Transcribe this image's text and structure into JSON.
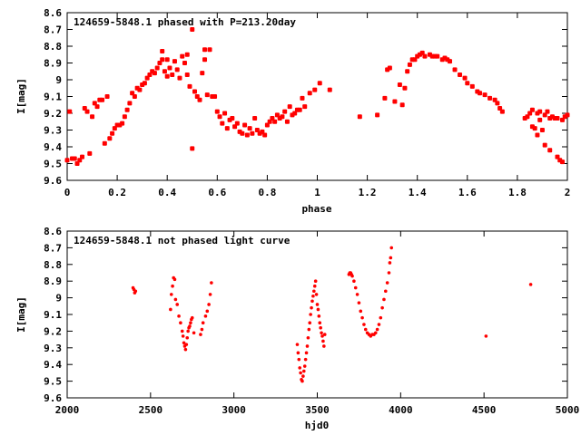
{
  "colors": {
    "points": "#ff0000",
    "axes": "#000000",
    "background": "#ffffff"
  },
  "chart_data": [
    {
      "type": "scatter",
      "title": "124659-5848.1 phased with P=213.20day",
      "xlabel": "phase",
      "ylabel": "I[mag]",
      "xlim": [
        0,
        2
      ],
      "ylim": [
        9.6,
        8.6
      ],
      "y_inverted": true,
      "grid": false,
      "xticks": [
        "0",
        "0.2",
        "0.4",
        "0.6",
        "0.8",
        "1",
        "1.2",
        "1.4",
        "1.6",
        "1.8",
        "2"
      ],
      "xtick_values": [
        0,
        0.2,
        0.4,
        0.6,
        0.8,
        1,
        1.2,
        1.4,
        1.6,
        1.8,
        2
      ],
      "yticks": [
        "8.6",
        "8.7",
        "8.8",
        "8.9",
        "9",
        "9.1",
        "9.2",
        "9.3",
        "9.4",
        "9.5",
        "9.6"
      ],
      "ytick_values": [
        8.6,
        8.7,
        8.8,
        8.9,
        9.0,
        9.1,
        9.2,
        9.3,
        9.4,
        9.5,
        9.6
      ],
      "marker": "large",
      "points": [
        [
          0.0,
          9.48
        ],
        [
          0.01,
          9.19
        ],
        [
          0.02,
          9.47
        ],
        [
          0.03,
          9.47
        ],
        [
          0.04,
          9.5
        ],
        [
          0.05,
          9.48
        ],
        [
          0.06,
          9.46
        ],
        [
          0.07,
          9.17
        ],
        [
          0.08,
          9.19
        ],
        [
          0.09,
          9.44
        ],
        [
          0.1,
          9.22
        ],
        [
          0.11,
          9.14
        ],
        [
          0.12,
          9.16
        ],
        [
          0.13,
          9.12
        ],
        [
          0.14,
          9.12
        ],
        [
          0.15,
          9.38
        ],
        [
          0.16,
          9.1
        ],
        [
          0.17,
          9.35
        ],
        [
          0.18,
          9.32
        ],
        [
          0.19,
          9.29
        ],
        [
          0.2,
          9.27
        ],
        [
          0.21,
          9.27
        ],
        [
          0.22,
          9.26
        ],
        [
          0.23,
          9.22
        ],
        [
          0.24,
          9.18
        ],
        [
          0.25,
          9.14
        ],
        [
          0.26,
          9.08
        ],
        [
          0.27,
          9.1
        ],
        [
          0.28,
          9.05
        ],
        [
          0.29,
          9.06
        ],
        [
          0.3,
          9.03
        ],
        [
          0.31,
          9.02
        ],
        [
          0.32,
          8.99
        ],
        [
          0.33,
          8.97
        ],
        [
          0.34,
          8.95
        ],
        [
          0.35,
          8.96
        ],
        [
          0.36,
          8.93
        ],
        [
          0.37,
          8.9
        ],
        [
          0.38,
          8.83
        ],
        [
          0.38,
          8.88
        ],
        [
          0.39,
          8.95
        ],
        [
          0.4,
          8.98
        ],
        [
          0.4,
          8.88
        ],
        [
          0.41,
          8.93
        ],
        [
          0.42,
          8.97
        ],
        [
          0.43,
          8.89
        ],
        [
          0.44,
          8.94
        ],
        [
          0.45,
          8.99
        ],
        [
          0.46,
          8.86
        ],
        [
          0.47,
          8.9
        ],
        [
          0.48,
          8.97
        ],
        [
          0.48,
          8.85
        ],
        [
          0.49,
          9.04
        ],
        [
          0.5,
          9.41
        ],
        [
          0.5,
          8.7
        ],
        [
          0.51,
          9.07
        ],
        [
          0.52,
          9.1
        ],
        [
          0.53,
          9.12
        ],
        [
          0.54,
          8.96
        ],
        [
          0.55,
          8.88
        ],
        [
          0.55,
          8.82
        ],
        [
          0.56,
          9.09
        ],
        [
          0.57,
          8.82
        ],
        [
          0.58,
          9.1
        ],
        [
          0.59,
          9.1
        ],
        [
          0.6,
          9.19
        ],
        [
          0.61,
          9.22
        ],
        [
          0.62,
          9.26
        ],
        [
          0.63,
          9.2
        ],
        [
          0.64,
          9.29
        ],
        [
          0.65,
          9.24
        ],
        [
          0.66,
          9.23
        ],
        [
          0.67,
          9.28
        ],
        [
          0.68,
          9.26
        ],
        [
          0.69,
          9.31
        ],
        [
          0.7,
          9.32
        ],
        [
          0.71,
          9.27
        ],
        [
          0.72,
          9.33
        ],
        [
          0.73,
          9.29
        ],
        [
          0.74,
          9.32
        ],
        [
          0.75,
          9.23
        ],
        [
          0.76,
          9.3
        ],
        [
          0.77,
          9.32
        ],
        [
          0.78,
          9.31
        ],
        [
          0.79,
          9.33
        ],
        [
          0.8,
          9.27
        ],
        [
          0.81,
          9.25
        ],
        [
          0.82,
          9.23
        ],
        [
          0.83,
          9.25
        ],
        [
          0.84,
          9.21
        ],
        [
          0.85,
          9.23
        ],
        [
          0.86,
          9.22
        ],
        [
          0.87,
          9.19
        ],
        [
          0.88,
          9.25
        ],
        [
          0.89,
          9.16
        ],
        [
          0.9,
          9.21
        ],
        [
          0.91,
          9.2
        ],
        [
          0.92,
          9.18
        ],
        [
          0.93,
          9.18
        ],
        [
          0.94,
          9.11
        ],
        [
          0.95,
          9.16
        ],
        [
          0.97,
          9.08
        ],
        [
          0.99,
          9.06
        ],
        [
          1.01,
          9.02
        ],
        [
          1.05,
          9.06
        ],
        [
          1.17,
          9.22
        ],
        [
          1.24,
          9.21
        ],
        [
          1.27,
          9.11
        ],
        [
          1.28,
          8.94
        ],
        [
          1.29,
          8.93
        ],
        [
          1.31,
          9.13
        ],
        [
          1.33,
          9.03
        ],
        [
          1.34,
          9.15
        ],
        [
          1.35,
          9.05
        ],
        [
          1.36,
          8.95
        ],
        [
          1.37,
          8.91
        ],
        [
          1.38,
          8.88
        ],
        [
          1.39,
          8.88
        ],
        [
          1.4,
          8.86
        ],
        [
          1.41,
          8.85
        ],
        [
          1.42,
          8.84
        ],
        [
          1.43,
          8.86
        ],
        [
          1.45,
          8.85
        ],
        [
          1.46,
          8.86
        ],
        [
          1.47,
          8.86
        ],
        [
          1.48,
          8.86
        ],
        [
          1.5,
          8.88
        ],
        [
          1.51,
          8.87
        ],
        [
          1.52,
          8.88
        ],
        [
          1.53,
          8.89
        ],
        [
          1.55,
          8.94
        ],
        [
          1.57,
          8.97
        ],
        [
          1.59,
          8.99
        ],
        [
          1.6,
          9.02
        ],
        [
          1.62,
          9.04
        ],
        [
          1.64,
          9.07
        ],
        [
          1.65,
          9.08
        ],
        [
          1.67,
          9.09
        ],
        [
          1.69,
          9.11
        ],
        [
          1.71,
          9.12
        ],
        [
          1.72,
          9.14
        ],
        [
          1.73,
          9.17
        ],
        [
          1.74,
          9.19
        ],
        [
          1.83,
          9.23
        ],
        [
          1.84,
          9.22
        ],
        [
          1.85,
          9.2
        ],
        [
          1.86,
          9.28
        ],
        [
          1.86,
          9.18
        ],
        [
          1.87,
          9.29
        ],
        [
          1.88,
          9.2
        ],
        [
          1.88,
          9.33
        ],
        [
          1.89,
          9.24
        ],
        [
          1.89,
          9.19
        ],
        [
          1.9,
          9.3
        ],
        [
          1.91,
          9.39
        ],
        [
          1.91,
          9.21
        ],
        [
          1.92,
          9.19
        ],
        [
          1.93,
          9.42
        ],
        [
          1.93,
          9.23
        ],
        [
          1.94,
          9.22
        ],
        [
          1.95,
          9.23
        ],
        [
          1.96,
          9.46
        ],
        [
          1.96,
          9.23
        ],
        [
          1.97,
          9.48
        ],
        [
          1.98,
          9.24
        ],
        [
          1.98,
          9.49
        ],
        [
          1.99,
          9.22
        ],
        [
          2.0,
          9.21
        ]
      ]
    },
    {
      "type": "scatter",
      "title": "124659-5848.1 not phased light curve",
      "xlabel": "hjd0",
      "ylabel": "I[mag]",
      "xlim": [
        2000,
        5000
      ],
      "ylim": [
        9.6,
        8.6
      ],
      "y_inverted": true,
      "grid": false,
      "xticks": [
        "2000",
        "2500",
        "3000",
        "3500",
        "4000",
        "4500",
        "5000"
      ],
      "xtick_values": [
        2000,
        2500,
        3000,
        3500,
        4000,
        4500,
        5000
      ],
      "yticks": [
        "8.6",
        "8.7",
        "8.8",
        "8.9",
        "9",
        "9.1",
        "9.2",
        "9.3",
        "9.4",
        "9.5",
        "9.6"
      ],
      "ytick_values": [
        8.6,
        8.7,
        8.8,
        8.9,
        9.0,
        9.1,
        9.2,
        9.3,
        9.4,
        9.5,
        9.6
      ],
      "marker": "small",
      "points": [
        [
          2395,
          8.94
        ],
        [
          2400,
          8.95
        ],
        [
          2405,
          8.97
        ],
        [
          2410,
          8.96
        ],
        [
          2620,
          9.07
        ],
        [
          2625,
          8.98
        ],
        [
          2632,
          8.93
        ],
        [
          2638,
          8.88
        ],
        [
          2645,
          8.89
        ],
        [
          2650,
          9.01
        ],
        [
          2660,
          9.04
        ],
        [
          2670,
          9.11
        ],
        [
          2680,
          9.15
        ],
        [
          2690,
          9.2
        ],
        [
          2695,
          9.23
        ],
        [
          2700,
          9.27
        ],
        [
          2705,
          9.29
        ],
        [
          2710,
          9.31
        ],
        [
          2715,
          9.28
        ],
        [
          2720,
          9.24
        ],
        [
          2725,
          9.2
        ],
        [
          2730,
          9.18
        ],
        [
          2735,
          9.17
        ],
        [
          2740,
          9.15
        ],
        [
          2745,
          9.13
        ],
        [
          2750,
          9.12
        ],
        [
          2760,
          9.21
        ],
        [
          2800,
          9.22
        ],
        [
          2808,
          9.19
        ],
        [
          2815,
          9.15
        ],
        [
          2830,
          9.11
        ],
        [
          2840,
          9.08
        ],
        [
          2850,
          9.04
        ],
        [
          2858,
          8.98
        ],
        [
          2865,
          8.91
        ],
        [
          3380,
          9.28
        ],
        [
          3385,
          9.33
        ],
        [
          3390,
          9.37
        ],
        [
          3395,
          9.42
        ],
        [
          3400,
          9.45
        ],
        [
          3405,
          9.49
        ],
        [
          3410,
          9.5
        ],
        [
          3415,
          9.47
        ],
        [
          3420,
          9.44
        ],
        [
          3425,
          9.41
        ],
        [
          3430,
          9.37
        ],
        [
          3435,
          9.33
        ],
        [
          3440,
          9.29
        ],
        [
          3445,
          9.24
        ],
        [
          3450,
          9.19
        ],
        [
          3455,
          9.15
        ],
        [
          3460,
          9.1
        ],
        [
          3465,
          9.06
        ],
        [
          3470,
          9.02
        ],
        [
          3475,
          8.99
        ],
        [
          3480,
          8.96
        ],
        [
          3485,
          8.93
        ],
        [
          3490,
          8.9
        ],
        [
          3495,
          8.98
        ],
        [
          3500,
          9.04
        ],
        [
          3505,
          9.07
        ],
        [
          3510,
          9.11
        ],
        [
          3515,
          9.15
        ],
        [
          3520,
          9.18
        ],
        [
          3525,
          9.21
        ],
        [
          3530,
          9.23
        ],
        [
          3535,
          9.26
        ],
        [
          3540,
          9.29
        ],
        [
          3545,
          9.22
        ],
        [
          3690,
          8.86
        ],
        [
          3695,
          8.85
        ],
        [
          3700,
          8.85
        ],
        [
          3705,
          8.86
        ],
        [
          3710,
          8.87
        ],
        [
          3720,
          8.9
        ],
        [
          3730,
          8.94
        ],
        [
          3740,
          8.98
        ],
        [
          3750,
          9.03
        ],
        [
          3760,
          9.08
        ],
        [
          3770,
          9.12
        ],
        [
          3780,
          9.16
        ],
        [
          3790,
          9.19
        ],
        [
          3800,
          9.21
        ],
        [
          3810,
          9.22
        ],
        [
          3820,
          9.23
        ],
        [
          3830,
          9.22
        ],
        [
          3840,
          9.22
        ],
        [
          3850,
          9.21
        ],
        [
          3860,
          9.19
        ],
        [
          3870,
          9.16
        ],
        [
          3880,
          9.12
        ],
        [
          3890,
          9.06
        ],
        [
          3900,
          9.01
        ],
        [
          3910,
          8.96
        ],
        [
          3920,
          8.91
        ],
        [
          3930,
          8.85
        ],
        [
          3935,
          8.79
        ],
        [
          3940,
          8.76
        ],
        [
          3945,
          8.7
        ],
        [
          4512,
          9.23
        ],
        [
          4780,
          8.92
        ]
      ]
    }
  ]
}
